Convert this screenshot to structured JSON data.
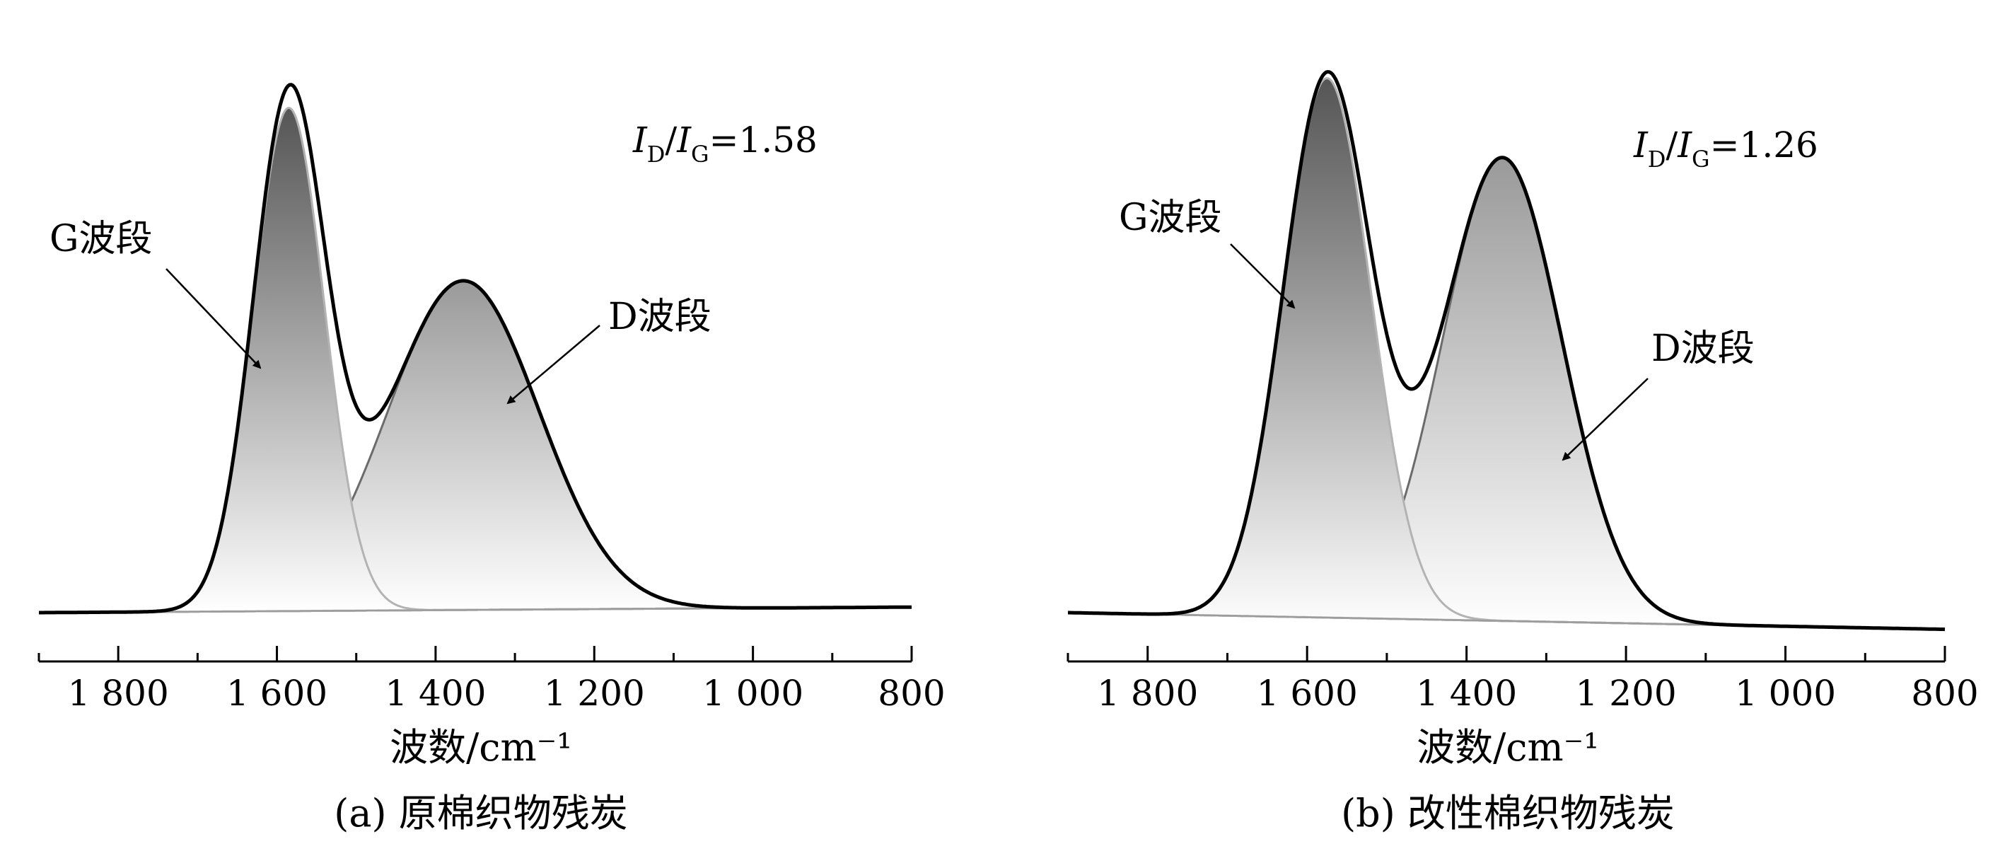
{
  "chart_data": [
    {
      "type": "area",
      "caption": "(a) 原棉织物残炭",
      "xlabel": "波数/cm⁻¹",
      "xlim": [
        1900,
        800
      ],
      "x_reversed": true,
      "x_ticks": [
        1800,
        1600,
        1400,
        1200,
        1000,
        800
      ],
      "x_tick_labels": [
        "1 800",
        "1 600",
        "1 400",
        "1 200",
        "1 000",
        "800"
      ],
      "y_axis_shown": false,
      "ylim": [
        0,
        1.0
      ],
      "baseline": {
        "start": 0.0,
        "end": 0.01
      },
      "bands": [
        {
          "name": "G波段",
          "center": 1585,
          "sigma": 45,
          "amplitude": 0.905,
          "label": "G波段"
        },
        {
          "name": "D波段",
          "center": 1365,
          "sigma": 95,
          "amplitude": 0.592,
          "label": "D波段"
        }
      ],
      "envelope": "sum of G and D bands on baseline",
      "ratio_text": {
        "i_d": "I",
        "sub_d": "D",
        "slash": "/",
        "i_g": "I",
        "sub_g": "G",
        "value": "=1.58"
      }
    },
    {
      "type": "area",
      "caption": "(b) 改性棉织物残炭",
      "xlabel": "波数/cm⁻¹",
      "xlim": [
        1900,
        800
      ],
      "x_reversed": true,
      "x_ticks": [
        1800,
        1600,
        1400,
        1200,
        1000,
        800
      ],
      "x_tick_labels": [
        "1 800",
        "1 600",
        "1 400",
        "1 200",
        "1 000",
        "800"
      ],
      "y_axis_shown": false,
      "ylim": [
        0,
        1.0
      ],
      "baseline": {
        "start": 0.0,
        "end": -0.03
      },
      "bands": [
        {
          "name": "G波段",
          "center": 1575,
          "sigma": 55,
          "amplitude": 0.97,
          "label": "G波段"
        },
        {
          "name": "D波段",
          "center": 1355,
          "sigma": 75,
          "amplitude": 0.833,
          "label": "D波段"
        }
      ],
      "envelope": "sum of G and D bands on baseline",
      "ratio_text": {
        "i_d": "I",
        "sub_d": "D",
        "slash": "/",
        "i_g": "I",
        "sub_g": "G",
        "value": "=1.26"
      }
    }
  ],
  "colors": {
    "axis": "#000000",
    "envelope": "#000000",
    "band_outline": "#6b6b6b",
    "g_outline_light": "#b3b3b3",
    "gradient_dark": "#5a5a5a",
    "gradient_light": "#ffffff"
  }
}
